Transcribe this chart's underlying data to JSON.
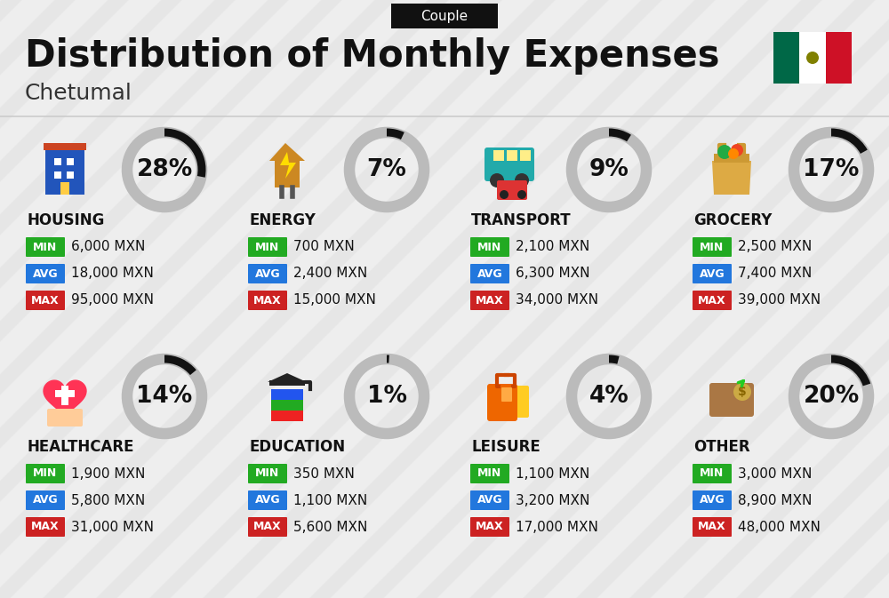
{
  "title": "Distribution of Monthly Expenses",
  "subtitle": "Chetumal",
  "badge_text": "Couple",
  "bg_color": "#eeeeee",
  "stripe_color": "#e0e0e0",
  "categories": [
    {
      "name": "HOUSING",
      "percent": 28,
      "min_val": "6,000 MXN",
      "avg_val": "18,000 MXN",
      "max_val": "95,000 MXN",
      "row": 0,
      "col": 0
    },
    {
      "name": "ENERGY",
      "percent": 7,
      "min_val": "700 MXN",
      "avg_val": "2,400 MXN",
      "max_val": "15,000 MXN",
      "row": 0,
      "col": 1
    },
    {
      "name": "TRANSPORT",
      "percent": 9,
      "min_val": "2,100 MXN",
      "avg_val": "6,300 MXN",
      "max_val": "34,000 MXN",
      "row": 0,
      "col": 2
    },
    {
      "name": "GROCERY",
      "percent": 17,
      "min_val": "2,500 MXN",
      "avg_val": "7,400 MXN",
      "max_val": "39,000 MXN",
      "row": 0,
      "col": 3
    },
    {
      "name": "HEALTHCARE",
      "percent": 14,
      "min_val": "1,900 MXN",
      "avg_val": "5,800 MXN",
      "max_val": "31,000 MXN",
      "row": 1,
      "col": 0
    },
    {
      "name": "EDUCATION",
      "percent": 1,
      "min_val": "350 MXN",
      "avg_val": "1,100 MXN",
      "max_val": "5,600 MXN",
      "row": 1,
      "col": 1
    },
    {
      "name": "LEISURE",
      "percent": 4,
      "min_val": "1,100 MXN",
      "avg_val": "3,200 MXN",
      "max_val": "17,000 MXN",
      "row": 1,
      "col": 2
    },
    {
      "name": "OTHER",
      "percent": 20,
      "min_val": "3,000 MXN",
      "avg_val": "8,900 MXN",
      "max_val": "48,000 MXN",
      "row": 1,
      "col": 3
    }
  ],
  "min_color": "#22aa22",
  "avg_color": "#2277dd",
  "max_color": "#cc2222",
  "donut_bg_color": "#bbbbbb",
  "donut_fg_color": "#111111",
  "title_fontsize": 30,
  "subtitle_fontsize": 18,
  "badge_fontsize": 11,
  "category_fontsize": 12,
  "value_fontsize": 11,
  "percent_fontsize": 19,
  "flag_green": "#006847",
  "flag_white": "#ffffff",
  "flag_red": "#ce1126"
}
